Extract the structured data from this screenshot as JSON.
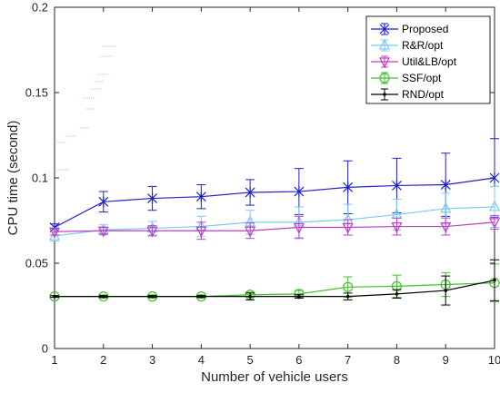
{
  "chart_data": {
    "type": "line",
    "title": "",
    "xlabel": "Number of vehicle users",
    "ylabel": "CPU time (second)",
    "xlim": [
      1,
      10
    ],
    "ylim": [
      0,
      0.2
    ],
    "x_ticks": [
      "1",
      "2",
      "3",
      "4",
      "5",
      "6",
      "7",
      "8",
      "9",
      "10"
    ],
    "y_ticks": [
      "0",
      "0.05",
      "0.1",
      "0.15",
      "0.2"
    ],
    "grid": false,
    "legend_position": "top-right",
    "x": [
      1,
      2,
      3,
      4,
      5,
      6,
      7,
      8,
      9,
      10
    ],
    "series": [
      {
        "name": "Proposed",
        "color": "#1f1fcc",
        "marker": "x-star",
        "values": [
          0.071,
          0.086,
          0.088,
          0.089,
          0.0915,
          0.092,
          0.0945,
          0.0955,
          0.096,
          0.1
        ],
        "errors": [
          0.002,
          0.006,
          0.007,
          0.007,
          0.0075,
          0.0135,
          0.0155,
          0.016,
          0.0185,
          0.023
        ]
      },
      {
        "name": "R&R/opt",
        "color": "#7fc8f0",
        "marker": "triangle-up",
        "values": [
          0.066,
          0.0695,
          0.0705,
          0.0715,
          0.074,
          0.074,
          0.0755,
          0.0785,
          0.082,
          0.083
        ],
        "errors": [
          0.003,
          0.003,
          0.004,
          0.006,
          0.007,
          0.009,
          0.009,
          0.009,
          0.009,
          0.012
        ]
      },
      {
        "name": "Util&LB/opt",
        "color": "#bf3fc6",
        "marker": "triangle-down",
        "values": [
          0.0685,
          0.069,
          0.069,
          0.069,
          0.069,
          0.071,
          0.071,
          0.0715,
          0.0715,
          0.074
        ],
        "errors": [
          0.002,
          0.002,
          0.003,
          0.005,
          0.0045,
          0.0065,
          0.0045,
          0.005,
          0.005,
          0.004
        ]
      },
      {
        "name": "SSF/opt",
        "color": "#46c02e",
        "marker": "circle",
        "values": [
          0.0305,
          0.0305,
          0.0305,
          0.0305,
          0.0315,
          0.032,
          0.036,
          0.0365,
          0.0375,
          0.0385
        ],
        "errors": [
          0.0005,
          0.001,
          0.001,
          0.001,
          0.0015,
          0.002,
          0.006,
          0.0065,
          0.007,
          0.011
        ]
      },
      {
        "name": "RND/opt",
        "color": "#000000",
        "marker": "point",
        "values": [
          0.0305,
          0.0305,
          0.0305,
          0.0305,
          0.0305,
          0.0305,
          0.0305,
          0.032,
          0.034,
          0.04
        ],
        "errors": [
          0.0005,
          0.0005,
          0.0005,
          0.0005,
          0.002,
          0.001,
          0.002,
          0.0025,
          0.0085,
          0.012
        ]
      }
    ]
  }
}
